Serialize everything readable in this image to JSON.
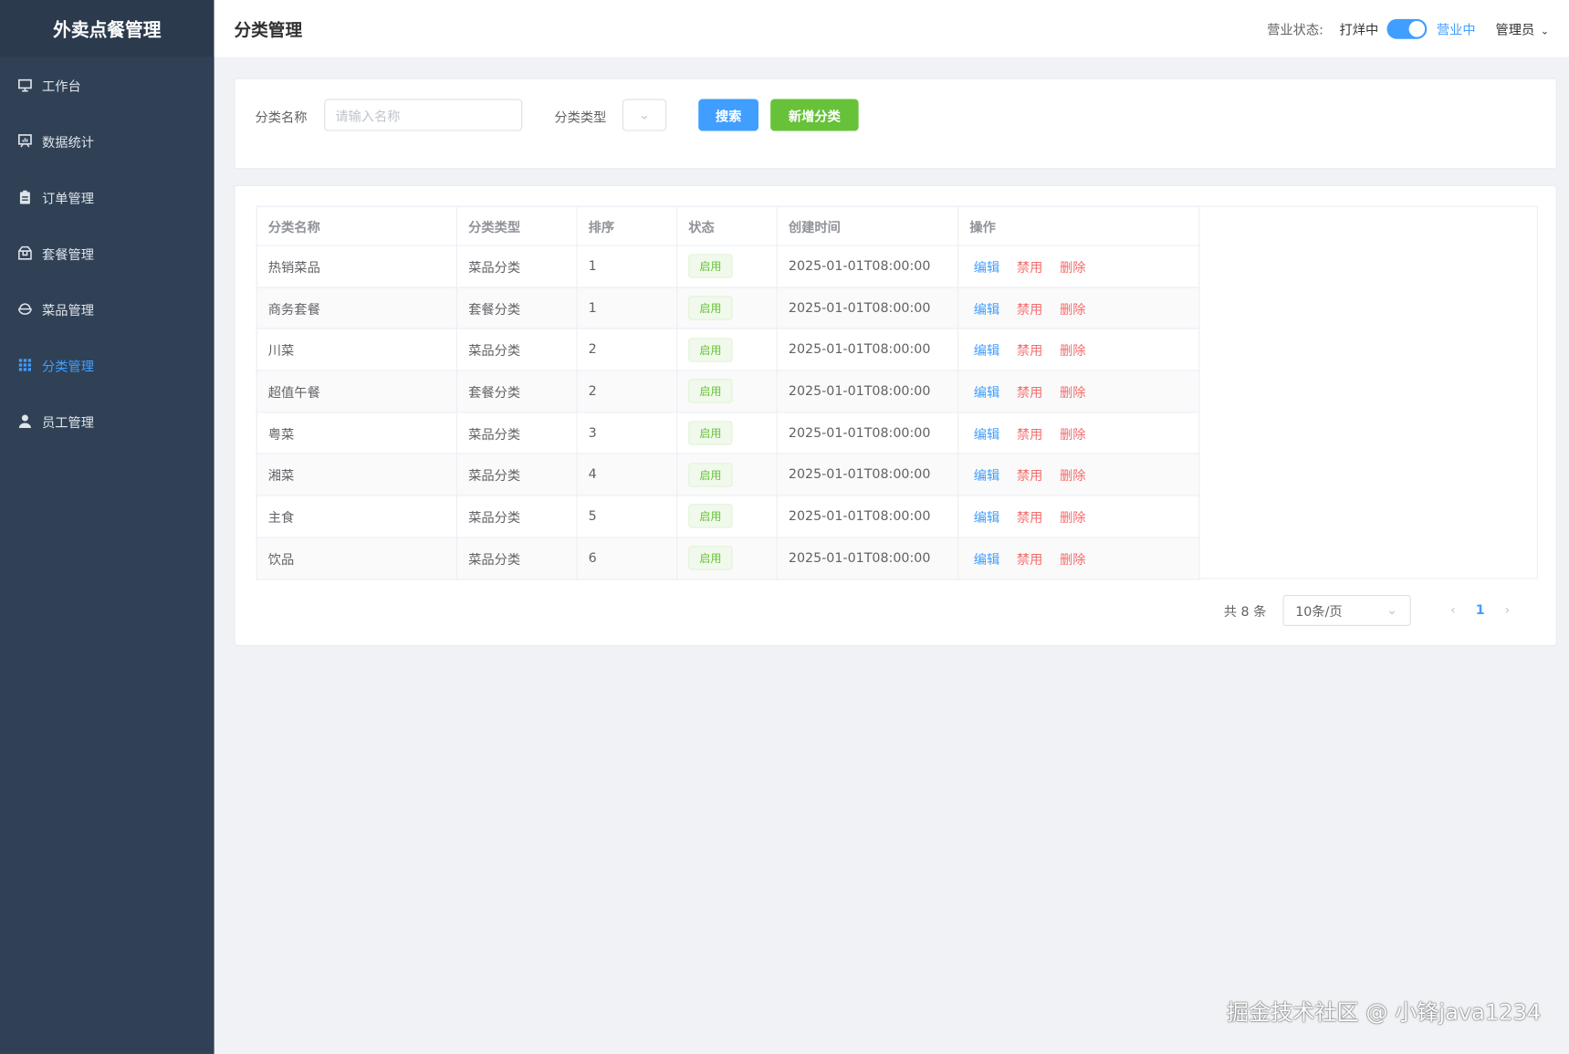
{
  "app": {
    "title": "外卖点餐管理"
  },
  "sidebar": {
    "items": [
      {
        "label": "工作台",
        "icon": "monitor-icon"
      },
      {
        "label": "数据统计",
        "icon": "chart-board-icon"
      },
      {
        "label": "订单管理",
        "icon": "clipboard-icon"
      },
      {
        "label": "套餐管理",
        "icon": "package-icon"
      },
      {
        "label": "菜品管理",
        "icon": "bowl-icon"
      },
      {
        "label": "分类管理",
        "icon": "grid-icon",
        "active": true
      },
      {
        "label": "员工管理",
        "icon": "user-icon"
      }
    ]
  },
  "header": {
    "title": "分类管理",
    "status_label": "营业状态:",
    "status_off": "打烊中",
    "status_on": "营业中",
    "user": "管理员"
  },
  "colors": {
    "accent": "#409eff",
    "success": "#67c23a",
    "danger": "#f56c6c",
    "sidebar": "#304156"
  },
  "filter": {
    "name_label": "分类名称",
    "name_placeholder": "请输入名称",
    "type_label": "分类类型",
    "search": "搜索",
    "add": "新增分类"
  },
  "table": {
    "columns": [
      "分类名称",
      "分类类型",
      "排序",
      "状态",
      "创建时间",
      "操作"
    ],
    "actions": {
      "edit": "编辑",
      "disable": "禁用",
      "delete": "删除"
    },
    "rows": [
      {
        "name": "热销菜品",
        "type": "菜品分类",
        "sort": "1",
        "status": "启用",
        "time": "2025-01-01T08:00:00"
      },
      {
        "name": "商务套餐",
        "type": "套餐分类",
        "sort": "1",
        "status": "启用",
        "time": "2025-01-01T08:00:00"
      },
      {
        "name": "川菜",
        "type": "菜品分类",
        "sort": "2",
        "status": "启用",
        "time": "2025-01-01T08:00:00"
      },
      {
        "name": "超值午餐",
        "type": "套餐分类",
        "sort": "2",
        "status": "启用",
        "time": "2025-01-01T08:00:00"
      },
      {
        "name": "粤菜",
        "type": "菜品分类",
        "sort": "3",
        "status": "启用",
        "time": "2025-01-01T08:00:00"
      },
      {
        "name": "湘菜",
        "type": "菜品分类",
        "sort": "4",
        "status": "启用",
        "time": "2025-01-01T08:00:00"
      },
      {
        "name": "主食",
        "type": "菜品分类",
        "sort": "5",
        "status": "启用",
        "time": "2025-01-01T08:00:00"
      },
      {
        "name": "饮品",
        "type": "菜品分类",
        "sort": "6",
        "status": "启用",
        "time": "2025-01-01T08:00:00"
      }
    ]
  },
  "pagination": {
    "total": "共 8 条",
    "page_size": "10条/页",
    "current": "1"
  },
  "watermark": "掘金技术社区 @ 小锋java1234"
}
